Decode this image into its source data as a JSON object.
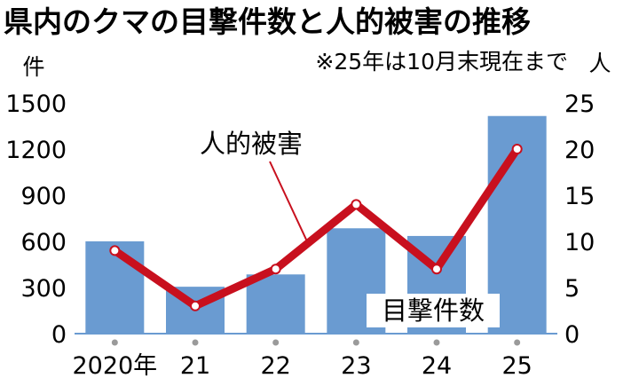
{
  "chart_data": {
    "type": "bar",
    "title": "県内のクマの目撃件数と人的被害の推移",
    "note": "※25年は10月末現在まで",
    "categories": [
      "2020年",
      "21",
      "22",
      "23",
      "24",
      "25"
    ],
    "left_axis": {
      "unit": "件",
      "ylim": [
        0,
        1500
      ],
      "ticks": [
        "0",
        "300",
        "600",
        "900",
        "1200",
        "1500"
      ]
    },
    "right_axis": {
      "unit": "人",
      "ylim": [
        0,
        25
      ],
      "ticks": [
        "0",
        "5",
        "10",
        "15",
        "20",
        "25"
      ]
    },
    "series": [
      {
        "name": "目撃件数",
        "type": "bar",
        "axis": "left",
        "values": [
          600,
          305,
          385,
          685,
          635,
          1415
        ]
      },
      {
        "name": "人的被害",
        "type": "line",
        "axis": "right",
        "values": [
          9,
          3,
          7,
          14,
          7,
          20
        ]
      }
    ],
    "colors": {
      "bar": "#6a9bd1",
      "line": "#c8101e",
      "marker_fill": "#ffffff",
      "tick_dot": "#9a9a9a"
    },
    "grid": false
  }
}
